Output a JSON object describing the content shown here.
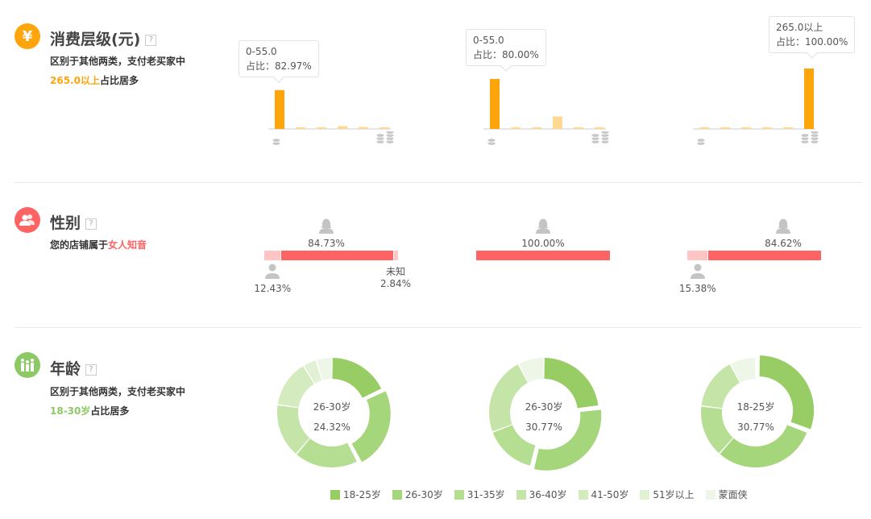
{
  "consumption": {
    "title": "消费层级(元)",
    "help": "?",
    "desc_line1": "区别于其他两类，支付老买家中",
    "highlight": "265.0以上",
    "desc_suffix": "占比居多",
    "accent": "#ffa50c",
    "light": "#ffd994",
    "charts": [
      {
        "values": [
          82.97,
          2,
          2,
          6,
          4,
          3
        ],
        "active": 0,
        "tip_range": "0-55.0",
        "tip_pct": "占比：82.97%"
      },
      {
        "values": [
          80.0,
          2,
          2,
          20,
          2,
          2
        ],
        "active": 0,
        "tip_range": "0-55.0",
        "tip_pct": "占比：80.00%"
      },
      {
        "values": [
          2,
          2,
          2,
          2,
          2,
          100.0
        ],
        "active": 5,
        "tip_range": "265.0以上",
        "tip_pct": "占比：100.00%"
      }
    ]
  },
  "gender": {
    "title": "性别",
    "help": "?",
    "desc_prefix": "您的店铺属于",
    "highlight": "女人知音",
    "accent": "#ff6464",
    "light": "#ffc4c4",
    "charts": [
      {
        "female": 84.73,
        "male": 12.43,
        "unknown": 2.84,
        "female_label": "84.73%",
        "male_label": "12.43%",
        "unknown_title": "未知",
        "unknown_label": "2.84%"
      },
      {
        "female": 100,
        "male": 0,
        "unknown": 0,
        "female_label": "100.00%"
      },
      {
        "female": 84.62,
        "male": 15.38,
        "unknown": 0,
        "female_label": "84.62%",
        "male_label": "15.38%"
      }
    ]
  },
  "age": {
    "title": "年龄",
    "help": "?",
    "desc_line1": "区别于其他两类，支付老买家中",
    "highlight": "18-30岁",
    "desc_suffix": "占比居多",
    "accent": "#8cc864",
    "legend": [
      "18-25岁",
      "26-30岁",
      "31-35岁",
      "36-40岁",
      "41-50岁",
      "51岁以上",
      "蒙面侠"
    ],
    "colors": [
      "#98cd66",
      "#a6d67c",
      "#b6de92",
      "#c5e4a8",
      "#d3ebbe",
      "#e2f1d3",
      "#eef6e7"
    ],
    "charts": [
      {
        "values": [
          18,
          24.32,
          19,
          16,
          14,
          4,
          4.68
        ],
        "active": 1,
        "center_label": "26-30岁",
        "center_pct": "24.32%"
      },
      {
        "values": [
          23.08,
          30.77,
          15.38,
          23.08,
          0,
          0,
          7.69
        ],
        "active": 1,
        "center_label": "26-30岁",
        "center_pct": "30.77%"
      },
      {
        "values": [
          30.77,
          30.77,
          15.38,
          15.38,
          0,
          0,
          7.69
        ],
        "active": 0,
        "center_label": "18-25岁",
        "center_pct": "30.77%"
      }
    ]
  }
}
